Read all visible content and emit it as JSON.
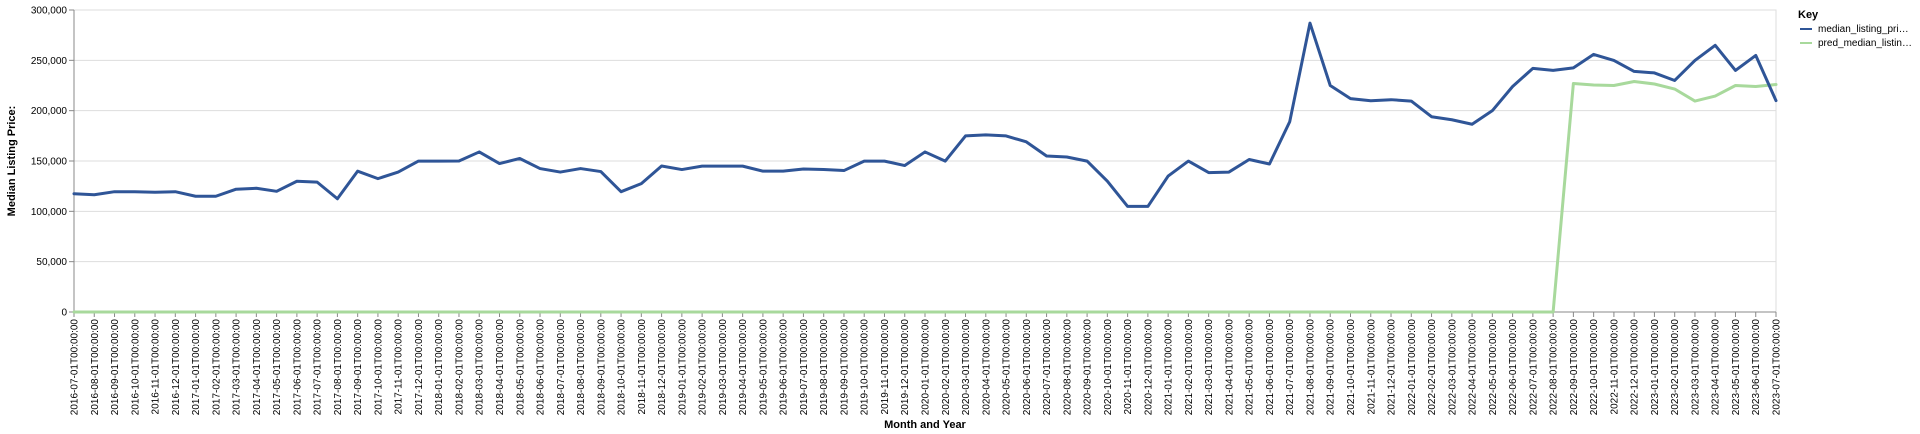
{
  "chart_data": {
    "type": "line",
    "title": "",
    "xlabel": "Month and Year",
    "ylabel": "Median Listing Price:",
    "ylim": [
      0,
      300000
    ],
    "yticks": [
      0,
      50000,
      100000,
      150000,
      200000,
      250000,
      300000
    ],
    "ytick_labels": [
      "0",
      "50,000",
      "100,000",
      "150,000",
      "200,000",
      "250,000",
      "300,000"
    ],
    "grid": true,
    "legend": {
      "title": "Key",
      "placement": "top-right",
      "items": [
        {
          "label": "median_listing_pri…",
          "color": "#2f5597"
        },
        {
          "label": "pred_median_listin…",
          "color": "#a8d99c"
        }
      ]
    },
    "categories": [
      "2016-07-01T00:00:00",
      "2016-08-01T00:00:00",
      "2016-09-01T00:00:00",
      "2016-10-01T00:00:00",
      "2016-11-01T00:00:00",
      "2016-12-01T00:00:00",
      "2017-01-01T00:00:00",
      "2017-02-01T00:00:00",
      "2017-03-01T00:00:00",
      "2017-04-01T00:00:00",
      "2017-05-01T00:00:00",
      "2017-06-01T00:00:00",
      "2017-07-01T00:00:00",
      "2017-08-01T00:00:00",
      "2017-09-01T00:00:00",
      "2017-10-01T00:00:00",
      "2017-11-01T00:00:00",
      "2017-12-01T00:00:00",
      "2018-01-01T00:00:00",
      "2018-02-01T00:00:00",
      "2018-03-01T00:00:00",
      "2018-04-01T00:00:00",
      "2018-05-01T00:00:00",
      "2018-06-01T00:00:00",
      "2018-07-01T00:00:00",
      "2018-08-01T00:00:00",
      "2018-09-01T00:00:00",
      "2018-10-01T00:00:00",
      "2018-11-01T00:00:00",
      "2018-12-01T00:00:00",
      "2019-01-01T00:00:00",
      "2019-02-01T00:00:00",
      "2019-03-01T00:00:00",
      "2019-04-01T00:00:00",
      "2019-05-01T00:00:00",
      "2019-06-01T00:00:00",
      "2019-07-01T00:00:00",
      "2019-08-01T00:00:00",
      "2019-09-01T00:00:00",
      "2019-10-01T00:00:00",
      "2019-11-01T00:00:00",
      "2019-12-01T00:00:00",
      "2020-01-01T00:00:00",
      "2020-02-01T00:00:00",
      "2020-03-01T00:00:00",
      "2020-04-01T00:00:00",
      "2020-05-01T00:00:00",
      "2020-06-01T00:00:00",
      "2020-07-01T00:00:00",
      "2020-08-01T00:00:00",
      "2020-09-01T00:00:00",
      "2020-10-01T00:00:00",
      "2020-11-01T00:00:00",
      "2020-12-01T00:00:00",
      "2021-01-01T00:00:00",
      "2021-02-01T00:00:00",
      "2021-03-01T00:00:00",
      "2021-04-01T00:00:00",
      "2021-05-01T00:00:00",
      "2021-06-01T00:00:00",
      "2021-07-01T00:00:00",
      "2021-08-01T00:00:00",
      "2021-09-01T00:00:00",
      "2021-10-01T00:00:00",
      "2021-11-01T00:00:00",
      "2021-12-01T00:00:00",
      "2022-01-01T00:00:00",
      "2022-02-01T00:00:00",
      "2022-03-01T00:00:00",
      "2022-04-01T00:00:00",
      "2022-05-01T00:00:00",
      "2022-06-01T00:00:00",
      "2022-07-01T00:00:00",
      "2022-08-01T00:00:00",
      "2022-09-01T00:00:00",
      "2022-10-01T00:00:00",
      "2022-11-01T00:00:00",
      "2022-12-01T00:00:00",
      "2023-01-01T00:00:00",
      "2023-02-01T00:00:00",
      "2023-03-01T00:00:00",
      "2023-04-01T00:00:00",
      "2023-05-01T00:00:00",
      "2023-06-01T00:00:00",
      "2023-07-01T00:00:00"
    ],
    "series": [
      {
        "name": "median_listing_pri…",
        "color": "#2f5597",
        "values": [
          117500,
          116500,
          119500,
          119500,
          118900,
          119500,
          115000,
          115000,
          122000,
          122900,
          119900,
          129900,
          129000,
          112500,
          139900,
          132500,
          139000,
          149900,
          149900,
          150000,
          159000,
          147500,
          152500,
          142500,
          139000,
          142500,
          139500,
          119500,
          127500,
          145000,
          141500,
          144900,
          144900,
          144900,
          139900,
          139900,
          142000,
          141500,
          140500,
          149900,
          149900,
          145500,
          159000,
          149900,
          174900,
          175900,
          174900,
          169000,
          155000,
          154000,
          149900,
          129900,
          104900,
          104900,
          135000,
          149900,
          138500,
          139000,
          151500,
          147000,
          189000,
          287000,
          225000,
          212000,
          209900,
          210900,
          209500,
          194000,
          191000,
          186500,
          200000,
          224000,
          242000,
          240000,
          242500,
          255900,
          249900,
          239000,
          237500,
          230000,
          249900,
          264900,
          240000,
          254900,
          210000
        ]
      },
      {
        "name": "pred_median_listin…",
        "color": "#a8d99c",
        "values": [
          0,
          0,
          0,
          0,
          0,
          0,
          0,
          0,
          0,
          0,
          0,
          0,
          0,
          0,
          0,
          0,
          0,
          0,
          0,
          0,
          0,
          0,
          0,
          0,
          0,
          0,
          0,
          0,
          0,
          0,
          0,
          0,
          0,
          0,
          0,
          0,
          0,
          0,
          0,
          0,
          0,
          0,
          0,
          0,
          0,
          0,
          0,
          0,
          0,
          0,
          0,
          0,
          0,
          0,
          0,
          0,
          0,
          0,
          0,
          0,
          0,
          0,
          0,
          0,
          0,
          0,
          0,
          0,
          0,
          0,
          0,
          0,
          0,
          0,
          227000,
          225500,
          225000,
          229000,
          226500,
          221500,
          209500,
          214500,
          225000,
          224000,
          226000
        ]
      }
    ]
  }
}
